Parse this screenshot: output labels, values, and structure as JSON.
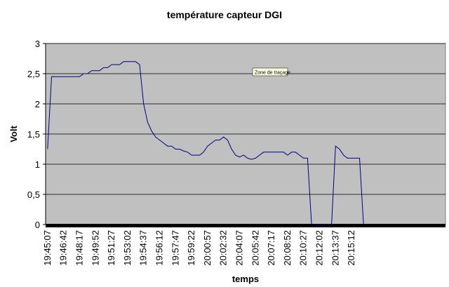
{
  "chart_data": {
    "type": "line",
    "title": "température capteur DGI",
    "x_label": "temps",
    "y_label": "Volt",
    "annotation": "Zone de traçage",
    "categories": [
      "19:45:07",
      null,
      null,
      null,
      "19:46:42",
      null,
      null,
      null,
      "19:48:17",
      null,
      null,
      null,
      "19:49:52",
      null,
      null,
      null,
      "19:51:27",
      null,
      null,
      null,
      "19:53:02",
      null,
      null,
      null,
      "19:54:37",
      null,
      null,
      null,
      "19:56:12",
      null,
      null,
      null,
      "19:57:47",
      null,
      null,
      null,
      "19:59:22",
      null,
      null,
      null,
      "20:00:57",
      null,
      null,
      null,
      "20:02:32",
      null,
      null,
      null,
      "20:04:07",
      null,
      null,
      null,
      "20:05:42",
      null,
      null,
      null,
      "20:07:17",
      null,
      null,
      null,
      "20:08:52",
      null,
      null,
      null,
      "20:10:27",
      null,
      null,
      null,
      "20:12:02",
      null,
      null,
      null,
      "20:13:37",
      null,
      null,
      null,
      "20:15:12",
      null,
      null,
      null,
      null,
      null,
      null,
      null,
      null,
      null,
      null,
      null,
      null,
      null,
      null,
      null,
      null,
      null,
      null,
      null,
      null,
      null,
      null,
      null
    ],
    "series": [
      {
        "name": "Volt",
        "color": "#000080",
        "values": [
          1.25,
          2.45,
          2.45,
          2.45,
          2.45,
          2.45,
          2.45,
          2.45,
          2.45,
          2.5,
          2.5,
          2.55,
          2.55,
          2.55,
          2.6,
          2.6,
          2.65,
          2.65,
          2.65,
          2.7,
          2.7,
          2.7,
          2.7,
          2.65,
          2.0,
          1.7,
          1.55,
          1.45,
          1.4,
          1.35,
          1.3,
          1.3,
          1.25,
          1.25,
          1.22,
          1.2,
          1.15,
          1.15,
          1.15,
          1.2,
          1.3,
          1.35,
          1.4,
          1.4,
          1.45,
          1.4,
          1.25,
          1.15,
          1.12,
          1.15,
          1.1,
          1.08,
          1.1,
          1.15,
          1.2,
          1.2,
          1.2,
          1.2,
          1.2,
          1.2,
          1.15,
          1.2,
          1.2,
          1.15,
          1.1,
          1.1,
          0,
          0,
          0,
          0,
          0,
          0,
          1.3,
          1.25,
          1.15,
          1.1,
          1.1,
          1.1,
          1.1,
          0,
          null,
          null,
          null,
          null,
          null,
          null,
          null,
          null,
          null,
          null,
          null,
          null,
          null,
          null,
          null,
          null,
          null,
          null,
          null,
          null
        ]
      }
    ],
    "ylim": [
      0,
      3
    ],
    "yticks": [
      0,
      {
        "value": 0.5,
        "label": "0,5"
      },
      1,
      {
        "value": 1.5,
        "label": "1,5"
      },
      2,
      {
        "value": 2.5,
        "label": "2,5"
      },
      3
    ],
    "grid": true,
    "plot_background": "#c0c0c0"
  }
}
